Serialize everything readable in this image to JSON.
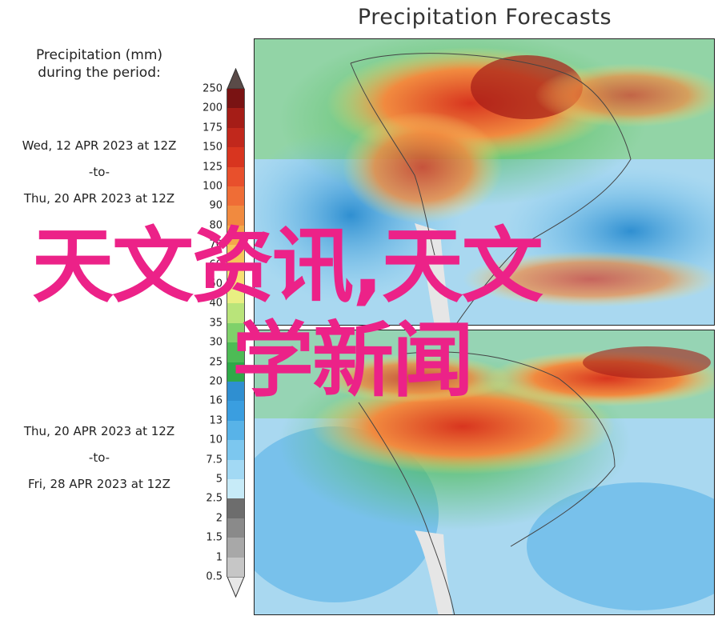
{
  "title": "Precipitation Forecasts",
  "legend": {
    "title_line1": "Precipitation (mm)",
    "title_line2": "during the period:",
    "ticks": [
      "250",
      "200",
      "175",
      "150",
      "125",
      "100",
      "90",
      "80",
      "70",
      "60",
      "50",
      "40",
      "35",
      "30",
      "25",
      "20",
      "16",
      "13",
      "10",
      "7.5",
      "5",
      "2.5",
      "2",
      "1.5",
      "1",
      "0.5"
    ],
    "colors": [
      "#7a1313",
      "#a51d17",
      "#c1281c",
      "#d8351f",
      "#e8502c",
      "#ef6d36",
      "#f18a3f",
      "#f4a84a",
      "#f6c65a",
      "#f7e173",
      "#e9ef82",
      "#b9e47a",
      "#7fd16a",
      "#4dbb55",
      "#2ea948",
      "#2f8fd1",
      "#3a9ee0",
      "#58b3e8",
      "#7cc7ef",
      "#a2d9f4",
      "#c7ebf8",
      "#6d6d6d",
      "#8a8a8a",
      "#a8a8a8",
      "#c6c6c6"
    ]
  },
  "periods": [
    {
      "from": "Wed, 12 APR 2023 at 12Z",
      "sep": "-to-",
      "to": "Thu, 20 APR 2023 at 12Z"
    },
    {
      "from": "Thu, 20 APR 2023 at 12Z",
      "sep": "-to-",
      "to": "Fri, 28 APR 2023 at 12Z"
    }
  ],
  "watermark": "天文资讯,天文学新闻"
}
